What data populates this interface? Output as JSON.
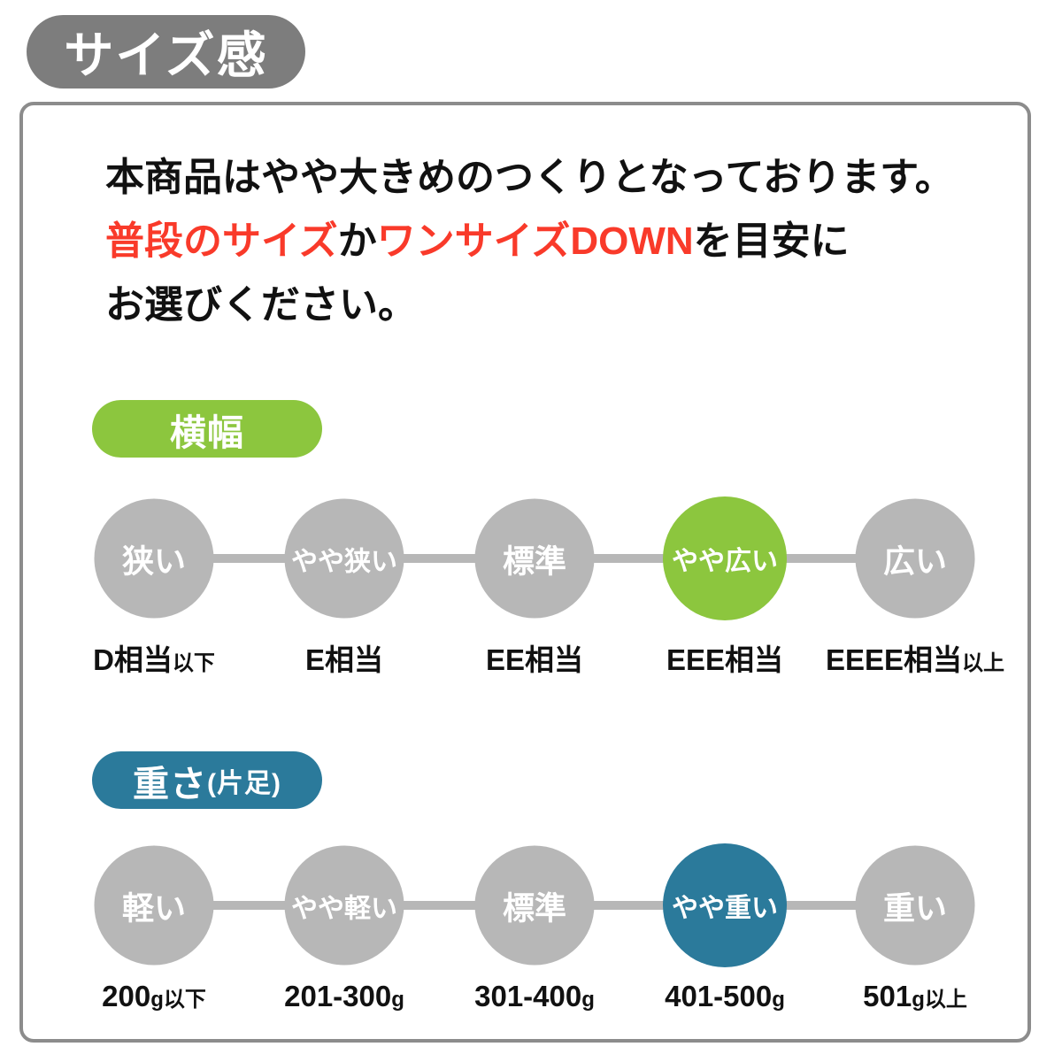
{
  "title": "サイズ感",
  "description": {
    "line1": "本商品はやや大きめのつくりとなっております。",
    "line2": [
      {
        "text": "普段のサイズ",
        "red": true
      },
      {
        "text": "か",
        "red": false
      },
      {
        "text": "ワンサイズDOWN",
        "red": true
      },
      {
        "text": "を目安に",
        "red": false
      }
    ],
    "line3": "お選びください。"
  },
  "colors": {
    "badge-gray": "#7d7d7d",
    "border-gray": "#8c8c8c",
    "gray": "#b7b7b7",
    "green": "#8cc63e",
    "teal": "#2b7a9b",
    "red": "#f93a2a",
    "text": "#111111"
  },
  "sections": [
    {
      "badge": "横幅",
      "badge_suffix": "",
      "accent": "#8cc63e",
      "scale": [
        {
          "label": "狭い",
          "sub": "D相当",
          "sub_suffix": "以下",
          "active": false
        },
        {
          "label": "やや狭い",
          "sub": "E相当",
          "sub_suffix": "",
          "active": false
        },
        {
          "label": "標準",
          "sub": "EE相当",
          "sub_suffix": "",
          "active": false
        },
        {
          "label": "やや広い",
          "sub": "EEE相当",
          "sub_suffix": "",
          "active": true
        },
        {
          "label": "広い",
          "sub": "EEEE相当",
          "sub_suffix": "以上",
          "active": false
        }
      ]
    },
    {
      "badge": "重さ",
      "badge_suffix": "(片足)",
      "accent": "#2b7a9b",
      "scale": [
        {
          "label": "軽い",
          "sub": "200",
          "sub_suffix": "g以下",
          "active": false
        },
        {
          "label": "やや軽い",
          "sub": "201-300",
          "sub_suffix": "g",
          "active": false
        },
        {
          "label": "標準",
          "sub": "301-400",
          "sub_suffix": "g",
          "active": false
        },
        {
          "label": "やや重い",
          "sub": "401-500",
          "sub_suffix": "g",
          "active": true
        },
        {
          "label": "重い",
          "sub": "501",
          "sub_suffix": "g以上",
          "active": false
        }
      ]
    }
  ]
}
